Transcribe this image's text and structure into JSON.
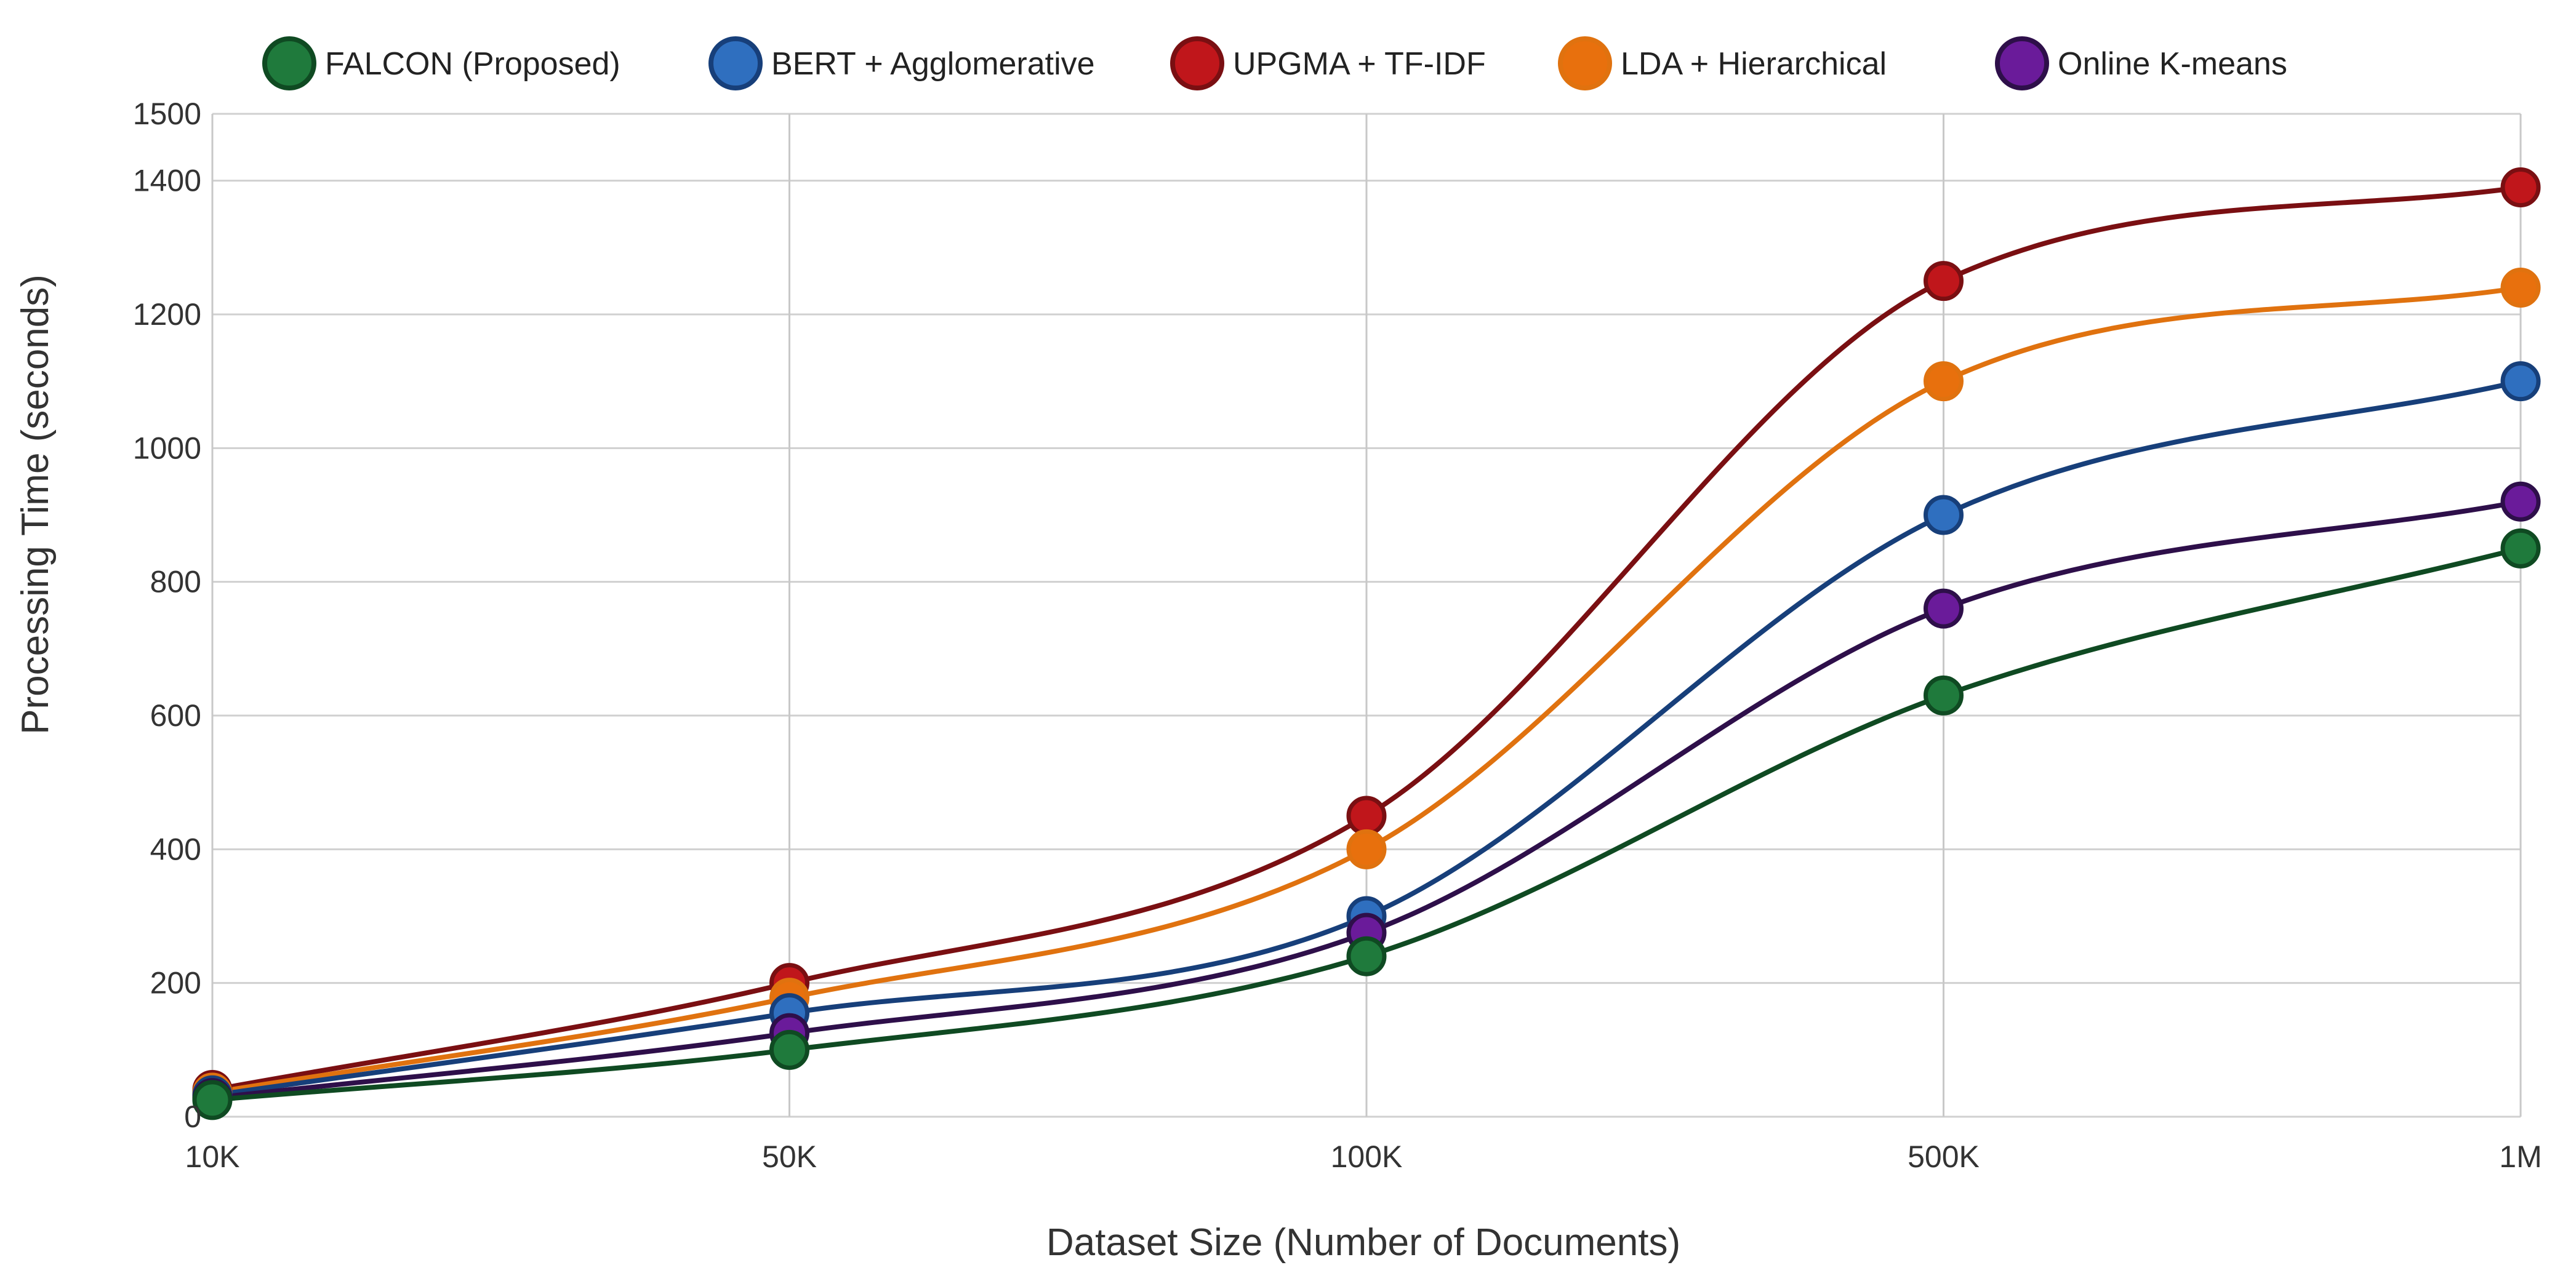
{
  "chart_data": {
    "type": "line",
    "title": "",
    "xlabel": "Dataset Size (Number of Documents)",
    "ylabel": "Processing Time (seconds)",
    "categories": [
      "10K",
      "50K",
      "100K",
      "500K",
      "1M"
    ],
    "ylim": [
      0,
      1500
    ],
    "yticks": [
      0,
      200,
      400,
      600,
      800,
      1000,
      1200,
      1400,
      1500
    ],
    "grid": true,
    "legend_position": "top",
    "series": [
      {
        "name": "FALCON (Proposed)",
        "color": "#1f7a3c",
        "line_color": "#0f4a22",
        "values": [
          25,
          100,
          240,
          630,
          850
        ]
      },
      {
        "name": "BERT + Agglomerative",
        "color": "#2f6fbf",
        "line_color": "#173f7a",
        "values": [
          32,
          155,
          300,
          900,
          1100
        ]
      },
      {
        "name": "UPGMA + TF-IDF",
        "color": "#c0161b",
        "line_color": "#7a0f12",
        "values": [
          40,
          200,
          450,
          1250,
          1390
        ]
      },
      {
        "name": "LDA + Hierarchical",
        "color": "#e8700d",
        "line_color": "#e0720f",
        "values": [
          36,
          178,
          400,
          1100,
          1240
        ]
      },
      {
        "name": "Online K-means",
        "color": "#6a1b9a",
        "line_color": "#2e0f4a",
        "values": [
          28,
          125,
          275,
          760,
          920
        ]
      }
    ]
  }
}
